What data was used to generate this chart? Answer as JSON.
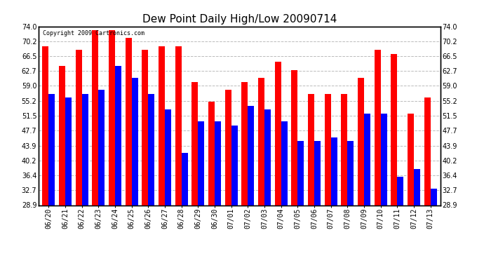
{
  "title": "Dew Point Daily High/Low 20090714",
  "copyright": "Copyright 2009 Cartronics.com",
  "dates": [
    "06/20",
    "06/21",
    "06/22",
    "06/23",
    "06/24",
    "06/25",
    "06/26",
    "06/27",
    "06/28",
    "06/29",
    "06/30",
    "07/01",
    "07/02",
    "07/03",
    "07/04",
    "07/05",
    "07/06",
    "07/07",
    "07/08",
    "07/09",
    "07/10",
    "07/11",
    "07/12",
    "07/13"
  ],
  "highs": [
    69,
    64,
    68,
    73,
    73,
    71,
    68,
    69,
    69,
    60,
    55,
    58,
    60,
    61,
    65,
    63,
    57,
    57,
    57,
    61,
    68,
    67,
    52,
    56
  ],
  "lows": [
    57,
    56,
    57,
    58,
    64,
    61,
    57,
    53,
    42,
    50,
    50,
    49,
    54,
    53,
    50,
    45,
    45,
    46,
    45,
    52,
    52,
    36,
    38,
    33
  ],
  "ylim_min": 28.9,
  "ylim_max": 74.0,
  "yticks": [
    28.9,
    32.7,
    36.4,
    40.2,
    43.9,
    47.7,
    51.5,
    55.2,
    59.0,
    62.7,
    66.5,
    70.2,
    74.0
  ],
  "bar_width": 0.38,
  "high_color": "#FF0000",
  "low_color": "#0000FF",
  "bg_color": "#FFFFFF",
  "grid_color": "#BBBBBB",
  "title_fontsize": 11,
  "tick_fontsize": 7,
  "copyright_fontsize": 6
}
